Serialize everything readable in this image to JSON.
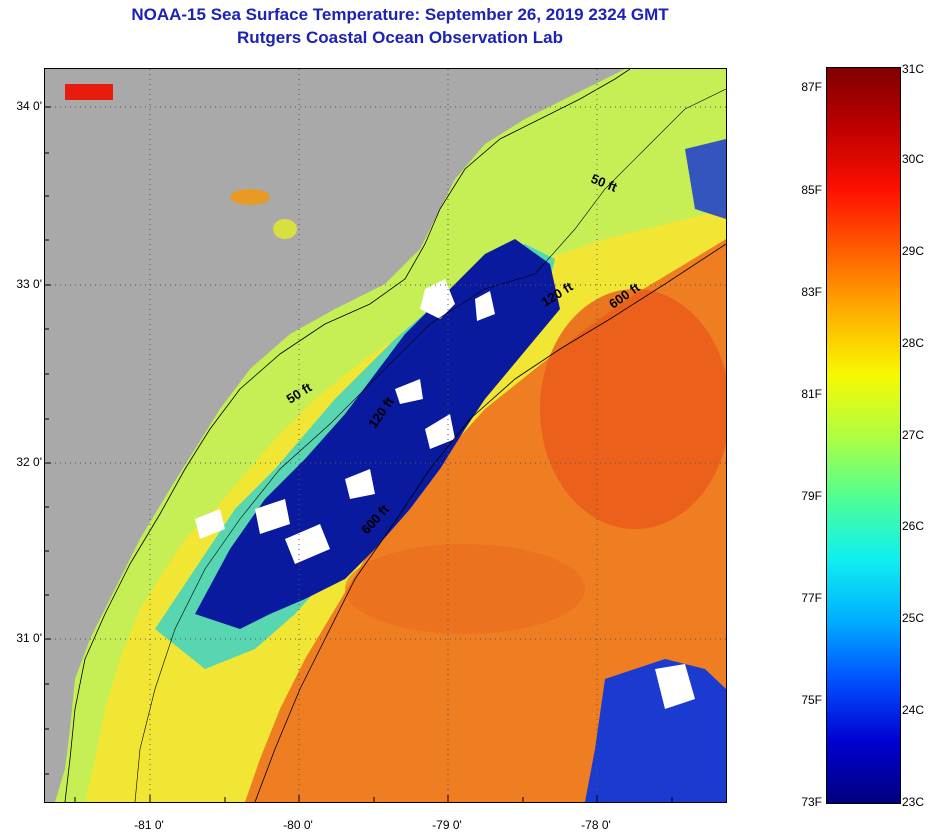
{
  "title": {
    "line1": "NOAA-15 Sea Surface Temperature:  September 26, 2019 2324 GMT",
    "line2": "Rutgers Coastal Ocean Observation Lab"
  },
  "map": {
    "latitude_labels": [
      "34 0'",
      "33 0'",
      "32 0'",
      "31 0'"
    ],
    "longitude_labels": [
      "-81 0'",
      "-80 0'",
      "-79 0'",
      "-78 0'"
    ],
    "contour_labels": [
      "50 ft",
      "120 ft",
      "600 ft",
      "50 ft",
      "120 ft",
      "600 ft"
    ],
    "colors": {
      "land": "#a9a9a9",
      "cold_water": "#0a1a9e",
      "cloud": "#ffffff",
      "nearshore": "#c8f050",
      "shelf": "#f2e830",
      "gulf_stream": "#f07a1e"
    }
  },
  "colorbar": {
    "fahrenheit_labels": [
      "87F",
      "85F",
      "83F",
      "81F",
      "79F",
      "77F",
      "75F",
      "73F"
    ],
    "celsius_labels": [
      "31C",
      "30C",
      "29C",
      "28C",
      "27C",
      "26C",
      "25C",
      "24C",
      "23C"
    ],
    "min_c": 23,
    "max_c": 31,
    "stops": [
      "#00007f",
      "#0000d0",
      "#0050ff",
      "#00b0ff",
      "#10f0f0",
      "#50ff90",
      "#b0ff40",
      "#f8f800",
      "#ffb000",
      "#ff6000",
      "#ff1000",
      "#c00000",
      "#800000"
    ]
  }
}
